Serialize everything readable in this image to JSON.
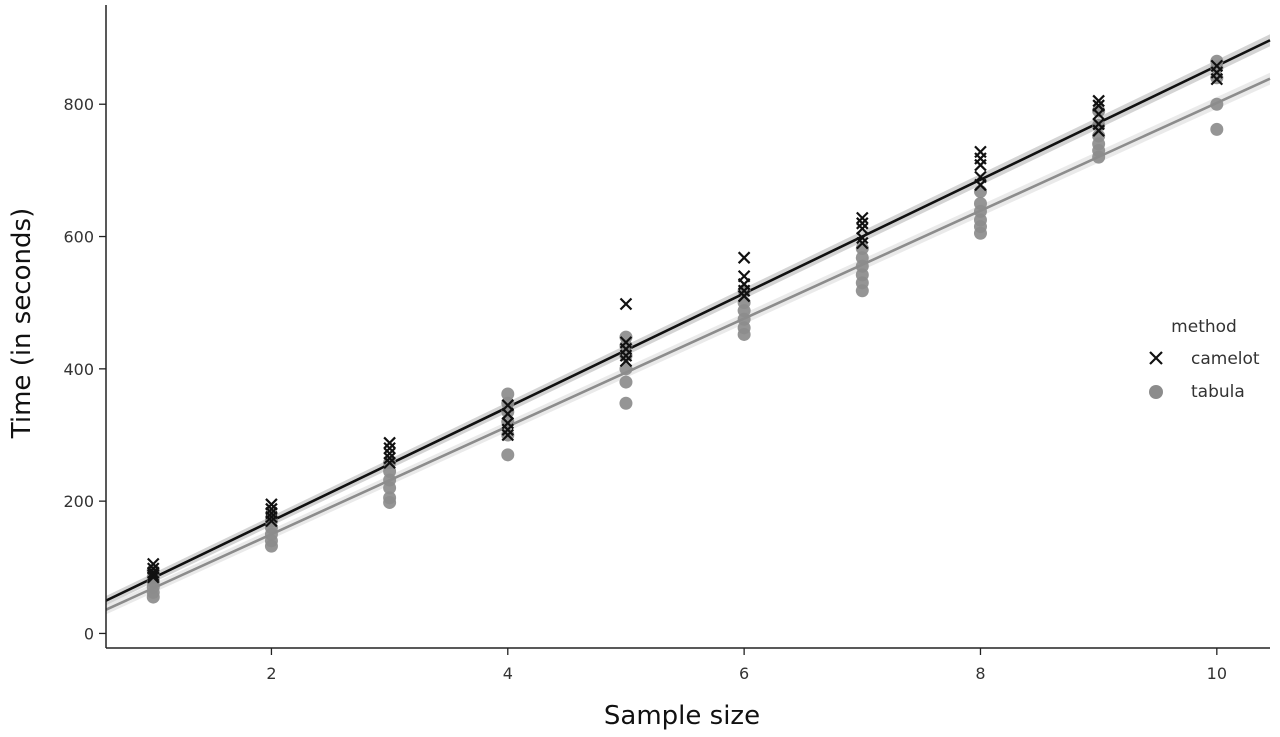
{
  "chart_data": {
    "type": "scatter",
    "title": "",
    "xlabel": "Sample size",
    "ylabel": "Time (in seconds)",
    "xlim": [
      0.6,
      10.45
    ],
    "ylim": [
      -22,
      950
    ],
    "xticks": [
      2,
      4,
      6,
      8,
      10
    ],
    "yticks": [
      0,
      200,
      400,
      600,
      800
    ],
    "grid": false,
    "legend": {
      "title": "method",
      "placement": "right"
    },
    "series": [
      {
        "name": "camelot",
        "marker": "x",
        "color": "#111111",
        "points": [
          [
            1,
            105
          ],
          [
            1,
            98
          ],
          [
            1,
            92
          ],
          [
            1,
            88
          ],
          [
            1,
            85
          ],
          [
            2,
            195
          ],
          [
            2,
            188
          ],
          [
            2,
            182
          ],
          [
            2,
            176
          ],
          [
            2,
            170
          ],
          [
            3,
            288
          ],
          [
            3,
            280
          ],
          [
            3,
            272
          ],
          [
            3,
            265
          ],
          [
            3,
            258
          ],
          [
            4,
            345
          ],
          [
            4,
            332
          ],
          [
            4,
            318
          ],
          [
            4,
            308
          ],
          [
            4,
            300
          ],
          [
            5,
            498
          ],
          [
            5,
            440
          ],
          [
            5,
            430
          ],
          [
            5,
            420
          ],
          [
            5,
            412
          ],
          [
            6,
            568
          ],
          [
            6,
            540
          ],
          [
            6,
            528
          ],
          [
            6,
            518
          ],
          [
            6,
            510
          ],
          [
            7,
            628
          ],
          [
            7,
            620
          ],
          [
            7,
            612
          ],
          [
            7,
            598
          ],
          [
            7,
            590
          ],
          [
            8,
            728
          ],
          [
            8,
            718
          ],
          [
            8,
            708
          ],
          [
            8,
            690
          ],
          [
            8,
            678
          ],
          [
            9,
            805
          ],
          [
            9,
            798
          ],
          [
            9,
            785
          ],
          [
            9,
            770
          ],
          [
            9,
            760
          ],
          [
            10,
            858
          ],
          [
            10,
            848
          ],
          [
            10,
            838
          ]
        ],
        "fit": {
          "slope": 86.0,
          "intercept": -2.0
        }
      },
      {
        "name": "tabula",
        "marker": "o",
        "color": "#8c8c8c",
        "points": [
          [
            1,
            95
          ],
          [
            1,
            85
          ],
          [
            1,
            78
          ],
          [
            1,
            70
          ],
          [
            1,
            62
          ],
          [
            1,
            55
          ],
          [
            2,
            170
          ],
          [
            2,
            160
          ],
          [
            2,
            150
          ],
          [
            2,
            140
          ],
          [
            2,
            132
          ],
          [
            3,
            258
          ],
          [
            3,
            245
          ],
          [
            3,
            232
          ],
          [
            3,
            220
          ],
          [
            3,
            205
          ],
          [
            3,
            198
          ],
          [
            4,
            362
          ],
          [
            4,
            348
          ],
          [
            4,
            335
          ],
          [
            4,
            320
          ],
          [
            4,
            300
          ],
          [
            4,
            270
          ],
          [
            5,
            448
          ],
          [
            5,
            435
          ],
          [
            5,
            420
          ],
          [
            5,
            400
          ],
          [
            5,
            380
          ],
          [
            5,
            348
          ],
          [
            6,
            518
          ],
          [
            6,
            500
          ],
          [
            6,
            488
          ],
          [
            6,
            475
          ],
          [
            6,
            462
          ],
          [
            6,
            452
          ],
          [
            7,
            582
          ],
          [
            7,
            568
          ],
          [
            7,
            555
          ],
          [
            7,
            542
          ],
          [
            7,
            530
          ],
          [
            7,
            518
          ],
          [
            8,
            668
          ],
          [
            8,
            650
          ],
          [
            8,
            638
          ],
          [
            8,
            625
          ],
          [
            8,
            615
          ],
          [
            8,
            605
          ],
          [
            9,
            790
          ],
          [
            9,
            768
          ],
          [
            9,
            752
          ],
          [
            9,
            740
          ],
          [
            9,
            730
          ],
          [
            9,
            720
          ],
          [
            10,
            865
          ],
          [
            10,
            855
          ],
          [
            10,
            840
          ],
          [
            10,
            800
          ],
          [
            10,
            762
          ]
        ],
        "fit": {
          "slope": 81.5,
          "intercept": -13.0
        }
      }
    ]
  }
}
